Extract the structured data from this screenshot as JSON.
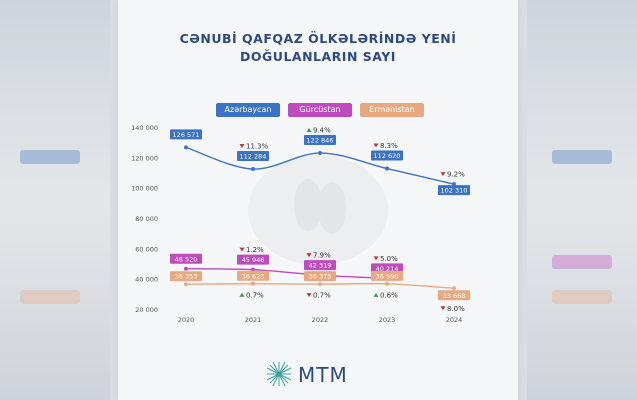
{
  "title_lines": [
    "CƏNUBİ QAFQAZ ÖLKƏLƏRİNDƏ YENİ",
    "DOĞULANLARIN SAYI"
  ],
  "logo_text": "MTM",
  "colors": {
    "azerbaijan": "#3c73c6",
    "georgia": "#c04bbe",
    "armenia": "#e8a981",
    "down": "#c0392b",
    "up": "#3f9b45"
  },
  "chart_data": {
    "type": "line",
    "title": "CƏNUBİ QAFQAZ ÖLKƏLƏRİNDƏ YENİ DOĞULANLARIN SAYI",
    "categories": [
      "2020",
      "2021",
      "2022",
      "2023",
      "2024"
    ],
    "ylim": [
      20000,
      140000
    ],
    "yticks": [
      "140 000",
      "120 000",
      "100 000",
      "80 000",
      "60 000",
      "40 000",
      "20 000"
    ],
    "ytick_values": [
      140000,
      120000,
      100000,
      80000,
      60000,
      40000,
      20000
    ],
    "legend_placement": "top",
    "series": [
      {
        "name": "Azərbaycan",
        "key": "azerbaijan",
        "values": [
          126571,
          112284,
          122846,
          112620,
          102310
        ],
        "labels": [
          "126 571",
          "112 284",
          "122 846",
          "112 620",
          "102 310"
        ],
        "changes": [
          null,
          "11.3%",
          "9.4%",
          "8.3%",
          "9.2%"
        ],
        "directions": [
          null,
          "down",
          "up",
          "down",
          "down"
        ]
      },
      {
        "name": "Gürcüstan",
        "key": "georgia",
        "values": [
          46520,
          45946,
          42319,
          40214,
          null
        ],
        "labels": [
          "46 520",
          "45 946",
          "42 319",
          "40 214",
          null
        ],
        "changes": [
          null,
          "1.2%",
          "7.9%",
          "5.0%",
          null
        ],
        "directions": [
          null,
          "down",
          "down",
          "down",
          null
        ]
      },
      {
        "name": "Ermənistan",
        "key": "armenia",
        "values": [
          36353,
          36623,
          36375,
          36590,
          33668
        ],
        "labels": [
          "36 353",
          "36 623",
          "36 375",
          "36 590",
          "33 668"
        ],
        "changes": [
          null,
          "0.7%",
          "0.7%",
          "0.6%",
          "8.0%"
        ],
        "directions": [
          null,
          "up",
          "down",
          "up",
          "down"
        ]
      }
    ]
  }
}
